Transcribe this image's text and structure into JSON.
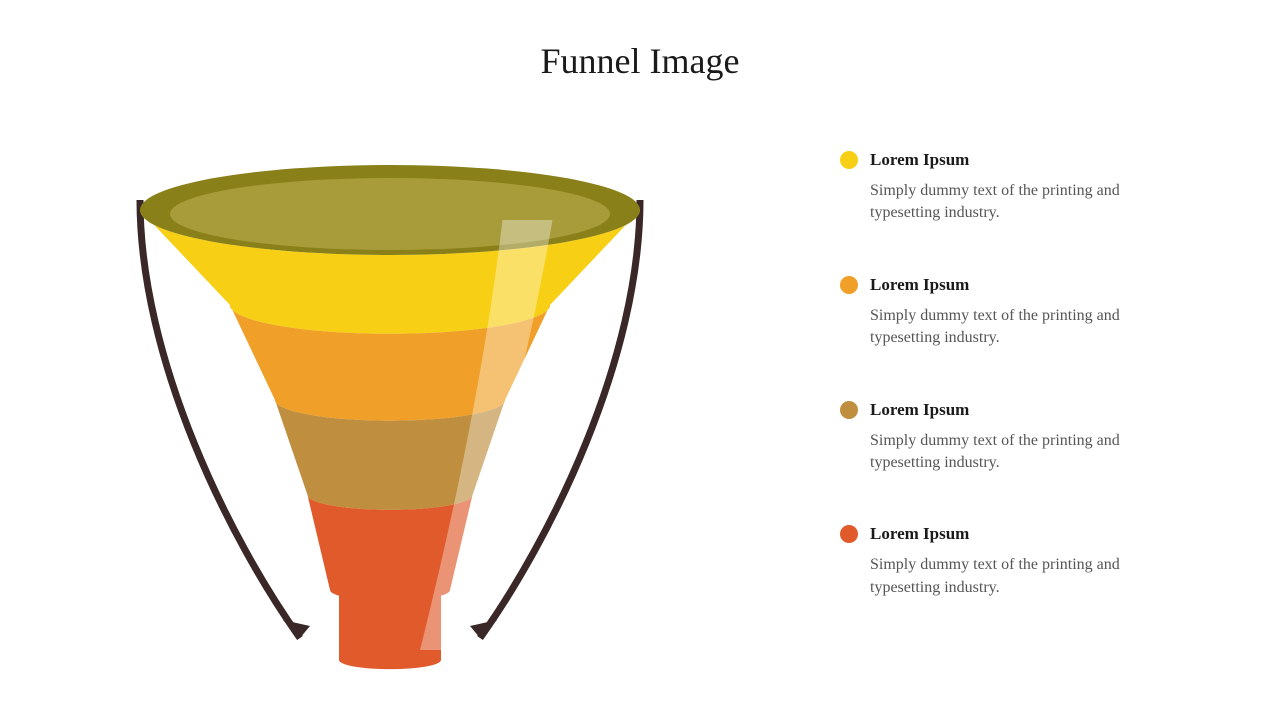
{
  "title": "Funnel Image",
  "background_color": "#ffffff",
  "title_color": "#1a1a1a",
  "title_fontsize": 36,
  "funnel": {
    "type": "funnel",
    "rim_color": "#8a8019",
    "rim_inner_color": "#a89b3a",
    "highlight_color": "#ffffff",
    "highlight_opacity": 0.35,
    "segments": [
      {
        "color": "#f7cf15",
        "top_width": 500,
        "bottom_width": 320
      },
      {
        "color": "#f0a028",
        "top_width": 320,
        "bottom_width": 230
      },
      {
        "color": "#bf8f3f",
        "top_width": 230,
        "bottom_width": 165
      },
      {
        "color": "#e05a2b",
        "top_width": 165,
        "bottom_width": 120
      }
    ],
    "arrow_color": "#3a2828",
    "arrow_width": 7
  },
  "legend": {
    "bullet_size": 18,
    "title_fontsize": 17,
    "title_color": "#1a1a1a",
    "desc_fontsize": 16,
    "desc_color": "#555555",
    "items": [
      {
        "color": "#f7cf15",
        "title": "Lorem Ipsum",
        "desc": "Simply dummy text of the printing and typesetting industry."
      },
      {
        "color": "#f0a028",
        "title": "Lorem Ipsum",
        "desc": "Simply dummy text of the printing and typesetting industry."
      },
      {
        "color": "#bf8f3f",
        "title": "Lorem Ipsum",
        "desc": "Simply dummy text of the printing and typesetting industry."
      },
      {
        "color": "#e05a2b",
        "title": "Lorem Ipsum",
        "desc": "Simply dummy text of the printing and typesetting industry."
      }
    ]
  }
}
